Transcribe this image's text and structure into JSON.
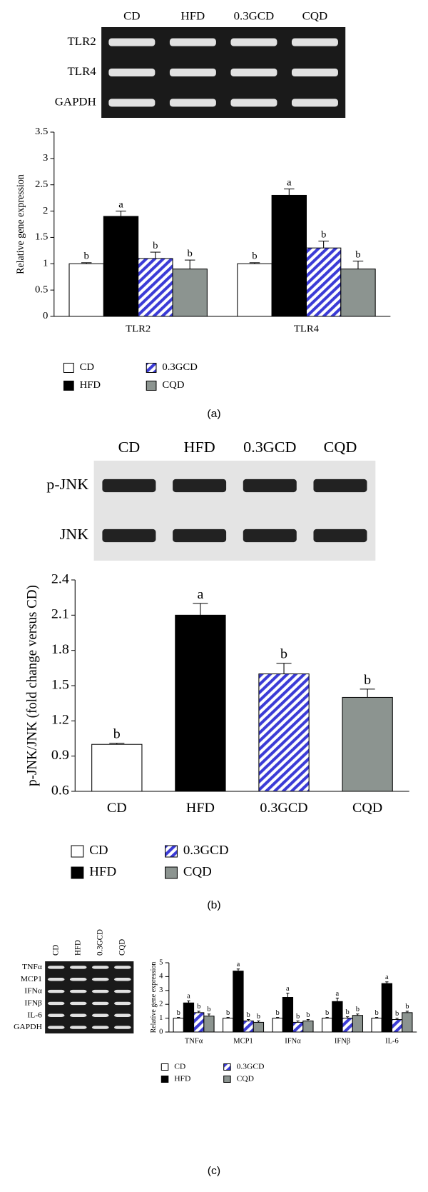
{
  "chart_data": [
    {
      "type": "bar",
      "panel_label": "(a)",
      "y_label": "Relative gene expression",
      "gel": {
        "lanes": [
          "CD",
          "HFD",
          "0.3GCD",
          "CQD"
        ],
        "rows": [
          "TLR2",
          "TLR4",
          "GAPDH"
        ]
      },
      "categories": [
        "TLR2",
        "TLR4"
      ],
      "series": [
        {
          "name": "CD",
          "color": "#ffffff",
          "hatched": false,
          "values": [
            1,
            1
          ],
          "errors": [
            0.02,
            0.02
          ],
          "letters": [
            "b",
            "b"
          ]
        },
        {
          "name": "HFD",
          "color": "#000000",
          "hatched": false,
          "values": [
            1.9,
            2.3
          ],
          "errors": [
            0.1,
            0.12
          ],
          "letters": [
            "a",
            "a"
          ]
        },
        {
          "name": "0.3GCD",
          "color": "#3b3bd6",
          "hatched": true,
          "values": [
            1.1,
            1.3
          ],
          "errors": [
            0.12,
            0.13
          ],
          "letters": [
            "b",
            "b"
          ]
        },
        {
          "name": "CQD",
          "color": "#8c9490",
          "hatched": false,
          "values": [
            0.9,
            0.9
          ],
          "errors": [
            0.17,
            0.15
          ],
          "letters": [
            "b",
            "b"
          ]
        }
      ],
      "ylim": [
        0,
        3.5
      ],
      "yticks": [
        0,
        0.5,
        1,
        1.5,
        2,
        2.5,
        3,
        3.5
      ]
    },
    {
      "type": "bar",
      "panel_label": "(b)",
      "y_label": "p-JNK/JNK (fold change versus CD)",
      "gel": {
        "lanes": [
          "CD",
          "HFD",
          "0.3GCD",
          "CQD"
        ],
        "rows": [
          "p-JNK",
          "JNK"
        ]
      },
      "categories": [
        "CD",
        "HFD",
        "0.3GCD",
        "CQD"
      ],
      "values": [
        1.0,
        2.1,
        1.6,
        1.4
      ],
      "errors": [
        0.01,
        0.1,
        0.09,
        0.07
      ],
      "letters": [
        "b",
        "a",
        "b",
        "b"
      ],
      "colors": [
        "#ffffff",
        "#000000",
        "#3b3bd6",
        "#8c9490"
      ],
      "hatched": [
        false,
        false,
        true,
        false
      ],
      "ylim": [
        0.6,
        2.4
      ],
      "yticks": [
        0.6,
        0.9,
        1.2,
        1.5,
        1.8,
        2.1,
        2.4
      ]
    },
    {
      "type": "bar",
      "panel_label": "(c)",
      "y_label": "Relative gene expression",
      "gel": {
        "lanes": [
          "CD",
          "HFD",
          "0.3GCD",
          "CQD"
        ],
        "rows": [
          "TNFα",
          "MCP1",
          "IFNα",
          "IFNβ",
          "IL-6",
          "GAPDH"
        ]
      },
      "categories": [
        "TNFα",
        "MCP1",
        "IFNα",
        "IFNβ",
        "IL-6"
      ],
      "series": [
        {
          "name": "CD",
          "color": "#ffffff",
          "hatched": false,
          "values": [
            1,
            1,
            1,
            1,
            1
          ],
          "errors": [
            0.05,
            0.05,
            0.05,
            0.05,
            0.05
          ],
          "letters": [
            "b",
            "b",
            "b",
            "b",
            "b"
          ]
        },
        {
          "name": "HFD",
          "color": "#000000",
          "hatched": false,
          "values": [
            2.1,
            4.4,
            2.5,
            2.2,
            3.5
          ],
          "errors": [
            0.15,
            0.15,
            0.3,
            0.25,
            0.12
          ],
          "letters": [
            "a",
            "a",
            "a",
            "a",
            "a"
          ]
        },
        {
          "name": "0.3GCD",
          "color": "#3b3bd6",
          "hatched": true,
          "values": [
            1.4,
            0.8,
            0.7,
            1.0,
            0.9
          ],
          "errors": [
            0.1,
            0.1,
            0.1,
            0.1,
            0.1
          ],
          "letters": [
            "b",
            "b",
            "b",
            "b",
            "b"
          ]
        },
        {
          "name": "CQD",
          "color": "#8c9490",
          "hatched": false,
          "values": [
            1.15,
            0.7,
            0.8,
            1.2,
            1.4
          ],
          "errors": [
            0.15,
            0.1,
            0.1,
            0.1,
            0.1
          ],
          "letters": [
            "b",
            "b",
            "b",
            "b",
            "b"
          ]
        }
      ],
      "ylim": [
        0,
        5
      ],
      "yticks": [
        0,
        1,
        2,
        3,
        4,
        5
      ]
    }
  ]
}
